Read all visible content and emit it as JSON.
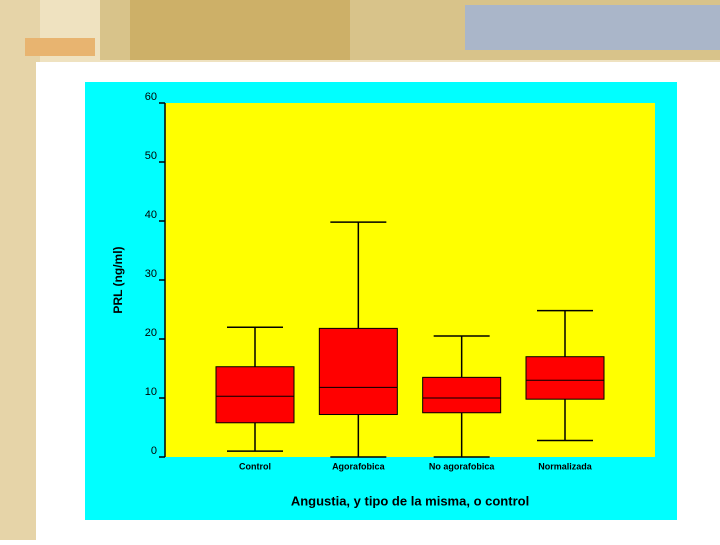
{
  "chart_data": {
    "type": "box",
    "ylabel": "PRL (ng/ml)",
    "xlabel": "Angustia, y tipo de la misma, o control",
    "categories": [
      "Control",
      "Agorafobica",
      "No agorafobica",
      "Normalizada"
    ],
    "whislo": [
      1,
      0,
      0,
      2.8
    ],
    "q1": [
      5.8,
      7.2,
      7.5,
      9.8
    ],
    "med": [
      10.3,
      11.8,
      10,
      13
    ],
    "q3": [
      15.3,
      21.8,
      13.5,
      17
    ],
    "whishi": [
      22,
      39.8,
      20.5,
      24.8
    ],
    "color": "#ff0000",
    "ylim": [
      0,
      60
    ],
    "yticks": [
      0,
      10,
      20,
      30,
      40,
      50,
      60
    ]
  }
}
